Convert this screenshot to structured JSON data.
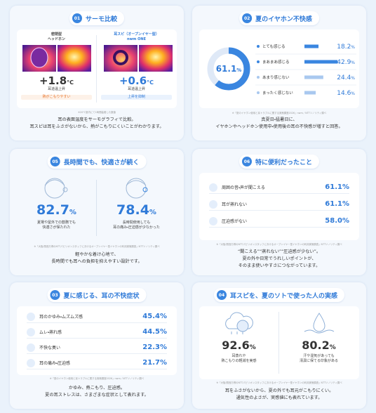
{
  "panels": [
    {
      "number": "01",
      "title": "サーモ比較",
      "items": [
        {
          "label": [
            "密閉型",
            "ヘッドホン"
          ],
          "value": "+1.8",
          "unit": "°C",
          "note": "耳道温上昇",
          "tag": "熱がこもりやすい"
        },
        {
          "label": [
            "耳スピ（オープンイヤー型）",
            "nwm ONE"
          ],
          "value": "+0.6",
          "unit": "°C",
          "note": "耳道温上昇",
          "tag": "上昇を抑制"
        }
      ],
      "footnote": "※20℃室内にて1時間装着した数値",
      "caption": [
        "耳の表面温度をサーモグラフィで比較。",
        "耳スピは耳をふさがないから、熱がこもりにくいことがわかります。"
      ]
    },
    {
      "number": "02",
      "title": "夏のイヤホン不快感",
      "donut": {
        "value": 61.1,
        "unit": "%"
      },
      "bars": [
        {
          "label": "とても感じる",
          "value": 18.2
        },
        {
          "label": "まあまあ感じる",
          "value": 42.9
        },
        {
          "label": "あまり感じない",
          "value": 24.4
        },
        {
          "label": "まったく感じない",
          "value": 14.6
        }
      ],
      "unit": "%",
      "footnote": "※「夏のイヤホン使用と耳トラブルに関する実態調査2026」nwm／NTTソノリティ調べ",
      "caption": [
        "真夏日・猛暑日に、",
        "イヤホンやヘッドホン使用中・使用後の耳の不快感が増すと回答。"
      ]
    },
    {
      "number": "05",
      "title": "長時間でも、快適さが続く",
      "items": [
        {
          "value": "82.7",
          "unit": "%",
          "text": [
            "夏場や屋外での勤務でも",
            "快適さが保たれた"
          ]
        },
        {
          "value": "78.4",
          "unit": "%",
          "text": [
            "長時間使用しても",
            "耳の痛み・圧迫感が少なかった"
          ]
        }
      ],
      "footnote": "※「大阪・関西万博のNTTパビリオンスタッフにおけるオープンイヤー型イヤホンの利用実態調査」NTTソノリティ調べ",
      "caption": [
        "軽やかな着け心地で、",
        "長時間でも耳への負担を抑えやすい設計です。"
      ]
    },
    {
      "number": "06",
      "title": "特に便利だったこと",
      "rows": [
        {
          "label": "周囲の音・声が聞こえる",
          "value": "61.1%"
        },
        {
          "label": "耳が蒸れない",
          "value": "61.1%"
        },
        {
          "label": "圧迫感がない",
          "value": "58.0%"
        }
      ],
      "footnote": "※「大阪・関西万博のNTTパビリオンスタッフにおけるオープンイヤー型イヤホンの利用実態調査」NTTソノリティ調べ",
      "caption": [
        "“聞こえる”“蒸れない”“圧迫感が少ない”。",
        "夏の外や日常でうれしいポイントが、",
        "そのまま使いやすさにつながっています。"
      ]
    },
    {
      "number": "03",
      "title": "夏に感じる、耳の不快症状",
      "rows": [
        {
          "label": "耳のかゆみ・ムズムズ感",
          "value": "45.4%"
        },
        {
          "label": "ムレ・蒸れ感",
          "value": "44.5%"
        },
        {
          "label": "不快な臭い",
          "value": "22.3%"
        },
        {
          "label": "耳の痛み・圧迫感",
          "value": "21.7%"
        }
      ],
      "footnote": "※「夏のイヤホン使用と耳トラブルに関する実態調査2026」nwm／NTTソノリティ調べ",
      "caption": [
        "かゆみ、熱こもり、圧迫感。",
        "夏の耳ストレスは、さまざまな症状として表れます。"
      ]
    },
    {
      "number": "04",
      "title": "耳スピを、夏のソトで使った人の実感",
      "items": [
        {
          "value": "92.6",
          "unit": "%",
          "text": [
            "耳蒸れや",
            "熱こもりの軽減を実感"
          ]
        },
        {
          "value": "80.2",
          "unit": "%",
          "text": [
            "汗や湿気があっても",
            "清潔に保てる印象がある"
          ]
        }
      ],
      "footnote": "※「大阪・関西万博のNTTパビリオンスタッフにおけるオープンイヤー型イヤホンの利用実態調査」NTTソノリティ調べ",
      "caption": [
        "耳をふさがないから、夏の外でも耳元がこもりにくい。",
        "通気性のよさが、実感値にも表れています。"
      ]
    }
  ]
}
